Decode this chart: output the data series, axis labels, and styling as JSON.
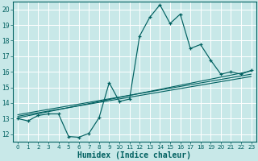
{
  "xlabel": "Humidex (Indice chaleur)",
  "bg_color": "#c8e8e8",
  "grid_color": "#ffffff",
  "line_color": "#006060",
  "xlim": [
    -0.5,
    23.5
  ],
  "ylim": [
    11.5,
    20.5
  ],
  "xticks": [
    0,
    1,
    2,
    3,
    4,
    5,
    6,
    7,
    8,
    9,
    10,
    11,
    12,
    13,
    14,
    15,
    16,
    17,
    18,
    19,
    20,
    21,
    22,
    23
  ],
  "yticks": [
    12,
    13,
    14,
    15,
    16,
    17,
    18,
    19,
    20
  ],
  "main_line_x": [
    0,
    1,
    2,
    3,
    4,
    5,
    6,
    7,
    8,
    9,
    10,
    11,
    12,
    13,
    14,
    15,
    16,
    17,
    18,
    19,
    20,
    21,
    22,
    23
  ],
  "main_line_y": [
    13.0,
    12.85,
    13.2,
    13.3,
    13.3,
    11.85,
    11.8,
    12.05,
    13.05,
    15.3,
    14.1,
    14.25,
    18.3,
    19.5,
    20.3,
    19.1,
    19.7,
    17.5,
    17.75,
    16.75,
    15.85,
    16.0,
    15.85,
    16.1
  ],
  "line1_y_start": 13.05,
  "line1_y_end": 16.05,
  "line2_y_start": 13.15,
  "line2_y_end": 15.7,
  "line3_y_start": 13.25,
  "line3_y_end": 15.85
}
